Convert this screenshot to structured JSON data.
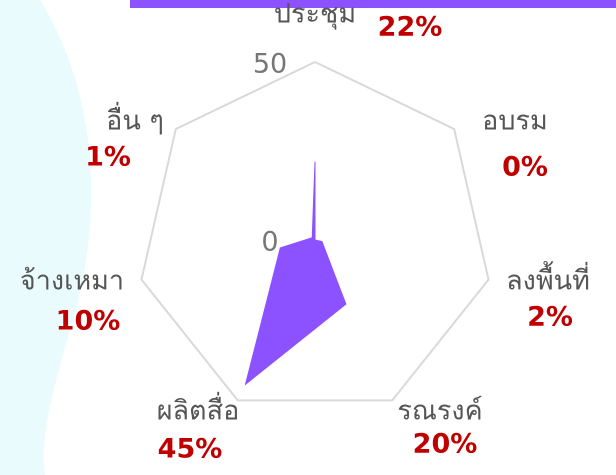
{
  "chart_data": {
    "type": "radar",
    "categories": [
      "ประชุม",
      "อบรม",
      "ลงพื้นที่",
      "รณรงค์",
      "ผลิตสื่อ",
      "จ้างเหมา",
      "อื่น ๆ"
    ],
    "values": [
      22,
      0,
      2,
      20,
      45,
      10,
      1
    ],
    "value_labels": [
      "22%",
      "0%",
      "2%",
      "20%",
      "45%",
      "10%",
      "1%"
    ],
    "color": "#8c52ff",
    "ylim": [
      0,
      50
    ],
    "yticks": [
      0,
      50
    ],
    "grid": true
  }
}
